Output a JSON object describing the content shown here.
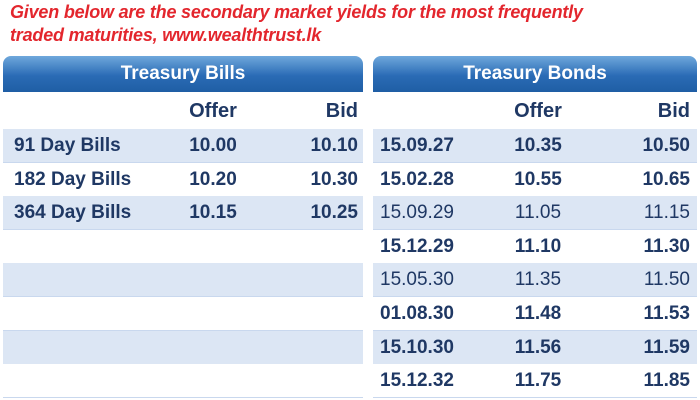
{
  "header": {
    "title_line1": "Given below are the secondary market yields for the most frequently",
    "title_line2": "traded maturities, www.wealthtrust.lk"
  },
  "bills": {
    "title": "Treasury Bills",
    "columns": [
      "Offer",
      "Bid"
    ],
    "rows": [
      [
        "91 Day Bills",
        "10.00",
        "10.10"
      ],
      [
        "182 Day Bills",
        "10.20",
        "10.30"
      ],
      [
        "364 Day Bills",
        "10.15",
        "10.25"
      ]
    ]
  },
  "bonds": {
    "title": "Treasury Bonds",
    "columns": [
      "Offer",
      "Bid"
    ],
    "rows": [
      {
        "cells": [
          "15.09.27",
          "10.35",
          "10.50"
        ],
        "bold": true
      },
      {
        "cells": [
          "15.02.28",
          "10.55",
          "10.65"
        ],
        "bold": true
      },
      {
        "cells": [
          "15.09.29",
          "11.05",
          "11.15"
        ],
        "bold": false
      },
      {
        "cells": [
          "15.12.29",
          "11.10",
          "11.30"
        ],
        "bold": true
      },
      {
        "cells": [
          "15.05.30",
          "11.35",
          "11.50"
        ],
        "bold": false
      },
      {
        "cells": [
          "01.08.30",
          "11.48",
          "11.53"
        ],
        "bold": true
      },
      {
        "cells": [
          "15.10.30",
          "11.56",
          "11.59"
        ],
        "bold": true
      },
      {
        "cells": [
          "15.12.32",
          "11.75",
          "11.85"
        ],
        "bold": true
      }
    ]
  }
}
